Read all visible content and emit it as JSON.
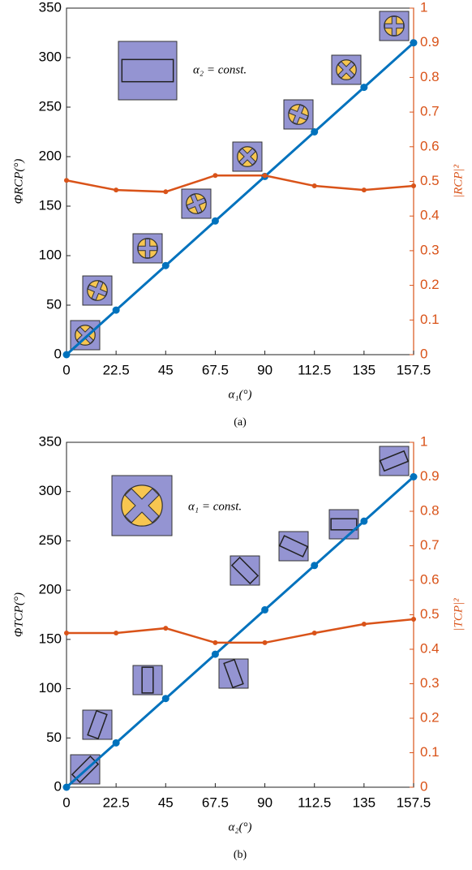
{
  "chart_data": [
    {
      "type": "line",
      "caption": "(a)",
      "xlabel": "α₁(°)",
      "ylabel": "ΦRCP(°)",
      "y2label": "|RCP|²",
      "annotation": "α₂ = const.",
      "x": [
        0,
        22.5,
        45,
        67.5,
        90,
        112.5,
        135,
        157.5
      ],
      "xlim": [
        0,
        157.5
      ],
      "xticks": [
        0,
        22.5,
        45,
        67.5,
        90,
        112.5,
        135,
        157.5
      ],
      "ylim": [
        0,
        350
      ],
      "yticks": [
        0,
        50,
        100,
        150,
        200,
        250,
        300,
        350
      ],
      "y2lim": [
        0,
        1
      ],
      "y2ticks": [
        0,
        0.1,
        0.2,
        0.3,
        0.4,
        0.5,
        0.6,
        0.7,
        0.8,
        0.9,
        1
      ],
      "series": [
        {
          "color": "#0072bd",
          "values": [
            0,
            45,
            90,
            135,
            180,
            225,
            270,
            315
          ]
        },
        {
          "color": "#d95319",
          "axis": "y2",
          "values": [
            0.503,
            0.475,
            0.47,
            0.517,
            0.517,
            0.487,
            0.475,
            0.487
          ]
        }
      ]
    },
    {
      "type": "line",
      "caption": "(b)",
      "xlabel": "α₂(°)",
      "ylabel": "ΦTCP(°)",
      "y2label": "|TCP|²",
      "annotation": "α₁ = const.",
      "x": [
        0,
        22.5,
        45,
        67.5,
        90,
        112.5,
        135,
        157.5
      ],
      "xlim": [
        0,
        157.5
      ],
      "xticks": [
        0,
        22.5,
        45,
        67.5,
        90,
        112.5,
        135,
        157.5
      ],
      "ylim": [
        0,
        350
      ],
      "yticks": [
        0,
        50,
        100,
        150,
        200,
        250,
        300,
        350
      ],
      "y2lim": [
        0,
        1
      ],
      "y2ticks": [
        0,
        0.1,
        0.2,
        0.3,
        0.4,
        0.5,
        0.6,
        0.7,
        0.8,
        0.9,
        1
      ],
      "series": [
        {
          "color": "#0072bd",
          "values": [
            0,
            45,
            90,
            135,
            180,
            225,
            270,
            315
          ]
        },
        {
          "color": "#d95319",
          "axis": "y2",
          "values": [
            0.447,
            0.447,
            0.461,
            0.419,
            0.419,
            0.447,
            0.473,
            0.487
          ]
        }
      ]
    }
  ]
}
